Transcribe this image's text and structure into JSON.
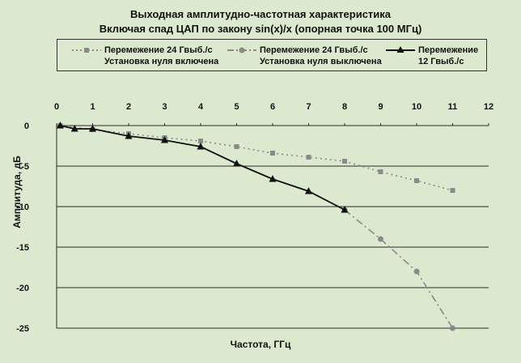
{
  "chart_data": {
    "type": "line",
    "title": "Выходная амплитудно-частотная характеристика",
    "subtitle": "Включая спад ЦАП по закону sin(x)/x (опорная точка 100 МГц)",
    "xlabel": "Частота, ГГц",
    "ylabel": "Амплитуда, дБ",
    "xlim": [
      0,
      12
    ],
    "ylim": [
      -25,
      0
    ],
    "x_ticks": [
      "0",
      "1",
      "2",
      "3",
      "4",
      "5",
      "6",
      "7",
      "8",
      "9",
      "10",
      "11",
      "12"
    ],
    "y_ticks": [
      "0",
      "-5",
      "-10",
      "-15",
      "-20",
      "-25"
    ],
    "x_axis_position": "top",
    "grid": true,
    "legend_position": "top",
    "series": [
      {
        "name_line1": "Перемежение 24 Гвыб./с",
        "name_line2": "Установка нуля включена",
        "color": "#8a8a8a",
        "style": "dotted",
        "marker": "square",
        "x": [
          0.1,
          1,
          2,
          3,
          4,
          5,
          6,
          7,
          8,
          9,
          10,
          11
        ],
        "y": [
          0,
          -0.5,
          -1.0,
          -1.5,
          -1.9,
          -2.6,
          -3.4,
          -3.9,
          -4.4,
          -5.7,
          -6.8,
          -8.0
        ]
      },
      {
        "name_line1": "Перемежение 24 Гвыб./с",
        "name_line2": "Установка нуля выключена",
        "color": "#8a8a8a",
        "style": "dashdot",
        "marker": "circle",
        "x": [
          8,
          9,
          10,
          11
        ],
        "y": [
          -10.4,
          -14.0,
          -18.0,
          -25.0
        ]
      },
      {
        "name_line1": "Перемежение",
        "name_line2": "12 Гвыб./с",
        "color": "#111111",
        "style": "solid",
        "marker": "triangle",
        "x": [
          0.1,
          0.5,
          1,
          2,
          3,
          4,
          5,
          6,
          7,
          8
        ],
        "y": [
          0,
          -0.4,
          -0.4,
          -1.3,
          -1.8,
          -2.6,
          -4.7,
          -6.6,
          -8.1,
          -10.4
        ]
      }
    ]
  }
}
